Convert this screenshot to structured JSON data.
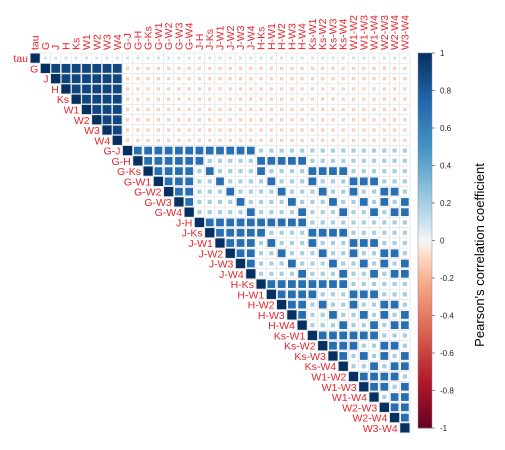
{
  "chart_data": {
    "type": "heatmap",
    "subtype": "upper-triangle correlation matrix (corrplot)",
    "variables": [
      "tau",
      "G",
      "J",
      "H",
      "Ks",
      "W1",
      "W2",
      "W3",
      "W4",
      "G-J",
      "G-H",
      "G-Ks",
      "G-W1",
      "G-W2",
      "G-W3",
      "G-W4",
      "J-H",
      "J-Ks",
      "J-W1",
      "J-W2",
      "J-W3",
      "J-W4",
      "H-Ks",
      "H-W1",
      "H-W2",
      "H-W3",
      "H-W4",
      "Ks-W1",
      "Ks-W2",
      "Ks-W3",
      "Ks-W4",
      "W1-W2",
      "W1-W3",
      "W1-W4",
      "W2-W3",
      "W2-W4",
      "W3-W4"
    ],
    "colorbar": {
      "label": "Pearson's correlation coefficient",
      "ticks": [
        "1",
        "0.8",
        "0.6",
        "0.4",
        "0.2",
        "0",
        "-0.2",
        "-0.4",
        "-0.6",
        "-0.8",
        "-1"
      ],
      "range": [
        -1,
        1
      ],
      "colors": {
        "negative": "#67001f",
        "neutral": "#f7f7f7",
        "positive": "#053061"
      }
    },
    "label_color": "#e8242b",
    "block_values": {
      "tau_row": 0.1,
      "single_single": 0.9,
      "single_vs_pair": -0.12,
      "pair_pair_shared_variable": 0.7,
      "pair_pair_disjoint": 0.2
    }
  }
}
